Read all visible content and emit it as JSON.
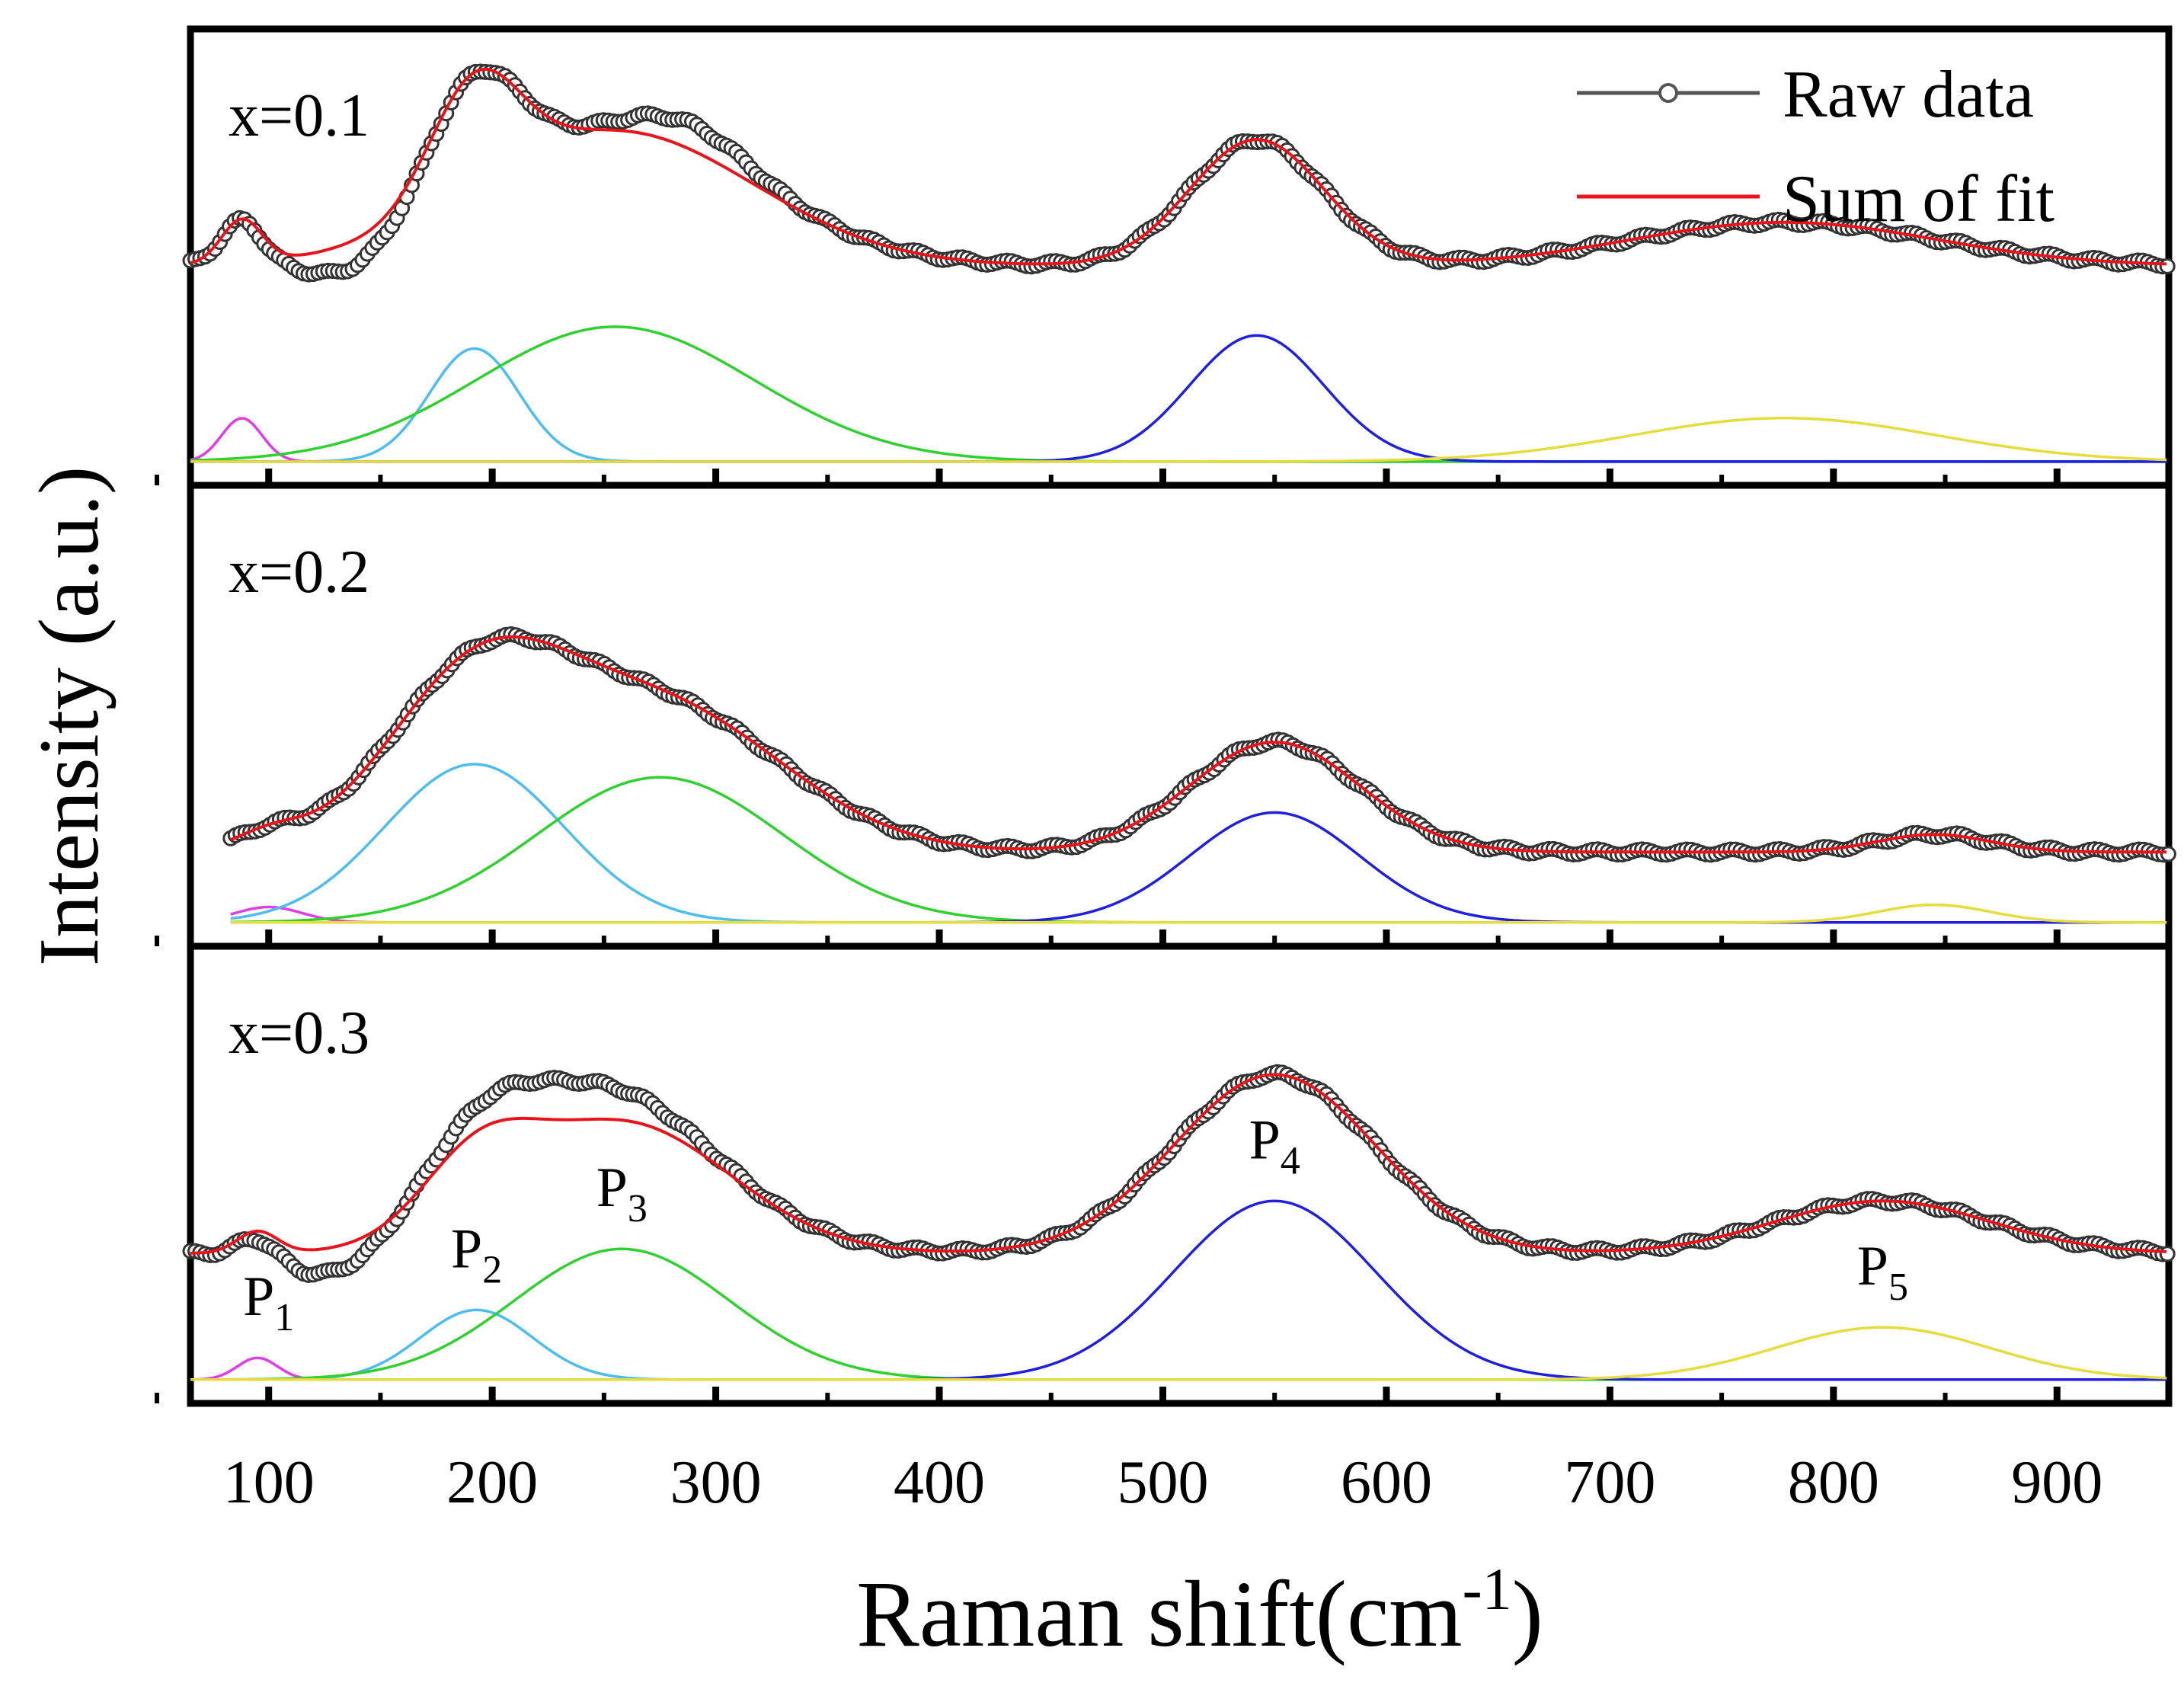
{
  "chart_data": {
    "type": "line",
    "title": "",
    "xlabel": "Raman shift(cm",
    "xlabel_sup": "-1",
    "xlabel_close": ")",
    "ylabel": "Intensity (a.u.)",
    "xlim": [
      65,
      950
    ],
    "ylim": [
      0,
      1
    ],
    "x_ticks": [
      "100",
      "200",
      "300",
      "400",
      "500",
      "600",
      "700",
      "800",
      "900"
    ],
    "x_tick_values": [
      100,
      200,
      300,
      400,
      500,
      600,
      700,
      800,
      900
    ],
    "legend": {
      "placement": "top-right",
      "entries": [
        {
          "label": "Raw data",
          "color": "#555555",
          "marker": "circle"
        },
        {
          "label": "Sum of fit",
          "color": "#e8141a"
        }
      ]
    },
    "series_colors": {
      "raw": "#333333",
      "fit": "#e8141a",
      "P1": "#e23be8",
      "P2": "#4cbdf0",
      "P3": "#2fd12f",
      "P4": "#1f1fe0",
      "P5": "#e5dd3c"
    },
    "peak_labels": [
      {
        "letter": "P",
        "sub": "1",
        "x": 100
      },
      {
        "letter": "P",
        "sub": "2",
        "x": 193
      },
      {
        "letter": "P",
        "sub": "3",
        "x": 258
      },
      {
        "letter": "P",
        "sub": "4",
        "x": 550
      },
      {
        "letter": "P",
        "sub": "5",
        "x": 822
      }
    ],
    "panels": [
      {
        "label": "x=0.1",
        "x_start": 65,
        "baseline": 0.03,
        "fit_offset": 0.48,
        "peaks": [
          {
            "name": "P1",
            "center": 88,
            "height": 0.1,
            "width": 9
          },
          {
            "name": "P2",
            "center": 192,
            "height": 0.26,
            "width": 20
          },
          {
            "name": "P3",
            "center": 255,
            "height": 0.31,
            "width": 62
          },
          {
            "name": "P4",
            "center": 542,
            "height": 0.29,
            "width": 30
          },
          {
            "name": "P5",
            "center": 778,
            "height": 0.1,
            "width": 68
          }
        ],
        "raw_extra": [
          {
            "center": 135,
            "height": -0.06,
            "width": 20
          },
          {
            "center": 290,
            "height": 0.06,
            "width": 25
          }
        ]
      },
      {
        "label": "x=0.2",
        "x_start": 83,
        "baseline": 0.03,
        "fit_offset": 0.19,
        "peaks": [
          {
            "name": "P1",
            "center": 100,
            "height": 0.035,
            "width": 15
          },
          {
            "name": "P2",
            "center": 192,
            "height": 0.36,
            "width": 40
          },
          {
            "name": "P3",
            "center": 275,
            "height": 0.33,
            "width": 55
          },
          {
            "name": "P4",
            "center": 550,
            "height": 0.25,
            "width": 38
          },
          {
            "name": "P5",
            "center": 845,
            "height": 0.04,
            "width": 25
          }
        ],
        "raw_extra": []
      },
      {
        "label": "x=0.3",
        "x_start": 65,
        "baseline": 0.03,
        "fit_offset": 0.32,
        "peaks": [
          {
            "name": "P1",
            "center": 95,
            "height": 0.05,
            "width": 9
          },
          {
            "name": "P2",
            "center": 193,
            "height": 0.16,
            "width": 25
          },
          {
            "name": "P3",
            "center": 258,
            "height": 0.3,
            "width": 48
          },
          {
            "name": "P4",
            "center": 550,
            "height": 0.41,
            "width": 45
          },
          {
            "name": "P5",
            "center": 822,
            "height": 0.12,
            "width": 48
          }
        ],
        "raw_extra": [
          {
            "center": 128,
            "height": -0.06,
            "width": 22
          },
          {
            "center": 230,
            "height": 0.09,
            "width": 40
          }
        ]
      }
    ]
  }
}
